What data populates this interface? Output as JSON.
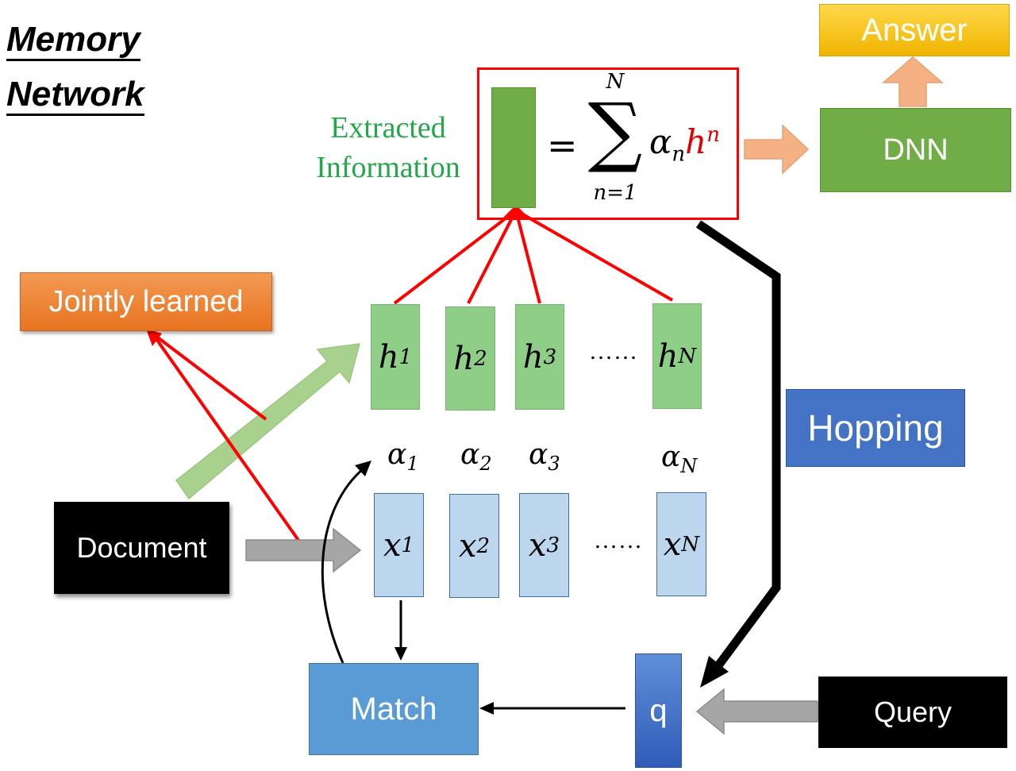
{
  "title": {
    "line1": "Memory",
    "line2": "Network"
  },
  "extracted_info": {
    "line1": "Extracted",
    "line2": "Information",
    "color": "#22a74a"
  },
  "equation": {
    "equals": "=",
    "sum": "∑",
    "upper": "N",
    "lower": "n=1",
    "alpha": "α",
    "alpha_sub": "n",
    "h": "h",
    "h_sup": "n",
    "h_color": "#e00000"
  },
  "boxes": {
    "answer": "Answer",
    "dnn": "DNN",
    "jointly": "Jointly learned",
    "hopping": "Hopping",
    "document": "Document",
    "match": "Match",
    "q": "q",
    "query": "Query"
  },
  "h_vectors": [
    {
      "base": "h",
      "sup": "1"
    },
    {
      "base": "h",
      "sup": "2"
    },
    {
      "base": "h",
      "sup": "3"
    },
    {
      "base": "h",
      "sup": "N"
    }
  ],
  "x_vectors": [
    {
      "base": "x",
      "sup": "1"
    },
    {
      "base": "x",
      "sup": "2"
    },
    {
      "base": "x",
      "sup": "3"
    },
    {
      "base": "x",
      "sup": "N"
    }
  ],
  "alphas": [
    {
      "base": "α",
      "sub": "1"
    },
    {
      "base": "α",
      "sub": "2"
    },
    {
      "base": "α",
      "sub": "3"
    },
    {
      "base": "α",
      "sub": "N"
    }
  ],
  "ellipsis": "……",
  "colors": {
    "answer": "#f7c300",
    "dnn": "#70ad47",
    "jointly": "#ed7d31",
    "hopping": "#4472c4",
    "match": "#5b9bd5",
    "q": "#3b6cc6",
    "red": "#ff0000"
  }
}
